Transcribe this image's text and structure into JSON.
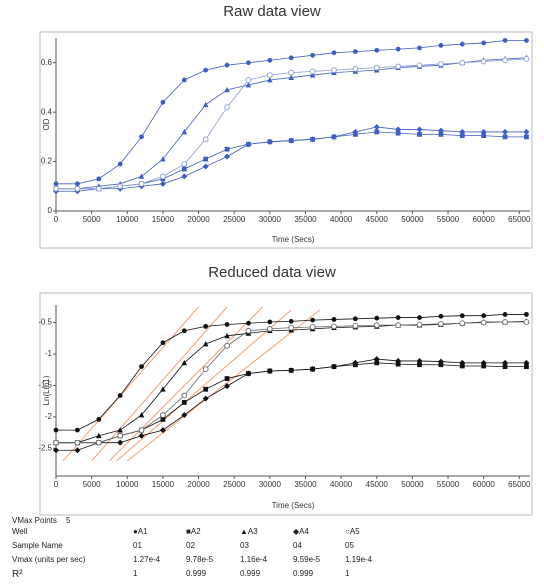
{
  "chart_data": [
    {
      "type": "line",
      "title": "Raw data view",
      "xlabel": "Time (Secs)",
      "ylabel": "OD",
      "x": [
        0,
        3000,
        6000,
        9000,
        12000,
        15000,
        18000,
        21000,
        24000,
        27000,
        30000,
        33000,
        36000,
        39000,
        42000,
        45000,
        48000,
        51000,
        54000,
        57000,
        60000,
        63000,
        66000
      ],
      "xlim": [
        0,
        66500
      ],
      "xticks": [
        0,
        5000,
        10000,
        15000,
        20000,
        25000,
        30000,
        35000,
        40000,
        45000,
        50000,
        55000,
        60000,
        65000
      ],
      "ylim": [
        0,
        0.7
      ],
      "yticks": [
        0,
        0.2,
        0.4,
        0.6
      ],
      "series": [
        {
          "marker": "circle",
          "color": "#3f5fbf",
          "values": [
            0.11,
            0.11,
            0.13,
            0.19,
            0.3,
            0.44,
            0.53,
            0.57,
            0.59,
            0.6,
            0.61,
            0.62,
            0.63,
            0.64,
            0.645,
            0.65,
            0.655,
            0.66,
            0.67,
            0.675,
            0.68,
            0.69,
            0.69
          ]
        },
        {
          "marker": "square",
          "color": "#3f5fbf",
          "values": [
            0.09,
            0.09,
            0.09,
            0.1,
            0.11,
            0.13,
            0.17,
            0.21,
            0.25,
            0.27,
            0.28,
            0.285,
            0.29,
            0.3,
            0.31,
            0.32,
            0.315,
            0.31,
            0.31,
            0.305,
            0.305,
            0.3,
            0.3
          ]
        },
        {
          "marker": "triangle",
          "color": "#3f5fbf",
          "values": [
            0.09,
            0.09,
            0.1,
            0.11,
            0.14,
            0.21,
            0.32,
            0.43,
            0.49,
            0.51,
            0.53,
            0.54,
            0.55,
            0.56,
            0.565,
            0.57,
            0.58,
            0.585,
            0.59,
            0.6,
            0.61,
            0.615,
            0.62
          ]
        },
        {
          "marker": "diamond",
          "color": "#3f5fbf",
          "values": [
            0.08,
            0.08,
            0.09,
            0.09,
            0.1,
            0.11,
            0.14,
            0.18,
            0.22,
            0.27,
            0.28,
            0.285,
            0.29,
            0.3,
            0.32,
            0.34,
            0.33,
            0.33,
            0.325,
            0.32,
            0.32,
            0.32,
            0.32
          ]
        },
        {
          "marker": "open-circle",
          "color": "#8a9ad0",
          "values": [
            0.09,
            0.09,
            0.09,
            0.1,
            0.11,
            0.14,
            0.19,
            0.29,
            0.42,
            0.53,
            0.55,
            0.56,
            0.565,
            0.57,
            0.575,
            0.58,
            0.585,
            0.59,
            0.595,
            0.6,
            0.605,
            0.61,
            0.615
          ]
        }
      ]
    },
    {
      "type": "line",
      "title": "Reduced data view",
      "xlabel": "Time (Secs)",
      "ylabel": "Ln(Lm1)",
      "x": [
        0,
        3000,
        6000,
        9000,
        12000,
        15000,
        18000,
        21000,
        24000,
        27000,
        30000,
        33000,
        36000,
        39000,
        42000,
        45000,
        48000,
        51000,
        54000,
        57000,
        60000,
        63000,
        66000
      ],
      "xlim": [
        0,
        66500
      ],
      "xticks": [
        0,
        5000,
        10000,
        15000,
        20000,
        25000,
        30000,
        35000,
        40000,
        45000,
        50000,
        55000,
        60000,
        65000
      ],
      "ylim": [
        -2.94,
        -0.22
      ],
      "yticks": [
        -0.5,
        -1,
        -1.5,
        -2,
        -2.5
      ],
      "series": [
        {
          "marker": "circle",
          "color": "#111111",
          "values": [
            -2.21,
            -2.21,
            -2.04,
            -1.66,
            -1.2,
            -0.82,
            -0.63,
            -0.56,
            -0.53,
            -0.51,
            -0.49,
            -0.48,
            -0.46,
            -0.45,
            -0.44,
            -0.43,
            -0.42,
            -0.42,
            -0.4,
            -0.39,
            -0.39,
            -0.37,
            -0.37
          ]
        },
        {
          "marker": "square",
          "color": "#111111",
          "values": [
            -2.41,
            -2.41,
            -2.41,
            -2.3,
            -2.21,
            -2.04,
            -1.77,
            -1.56,
            -1.39,
            -1.31,
            -1.27,
            -1.26,
            -1.24,
            -1.2,
            -1.17,
            -1.14,
            -1.16,
            -1.17,
            -1.17,
            -1.19,
            -1.19,
            -1.2,
            -1.2
          ]
        },
        {
          "marker": "triangle",
          "color": "#111111",
          "values": [
            -2.41,
            -2.41,
            -2.3,
            -2.21,
            -1.97,
            -1.56,
            -1.14,
            -0.84,
            -0.71,
            -0.67,
            -0.63,
            -0.62,
            -0.6,
            -0.58,
            -0.57,
            -0.56,
            -0.54,
            -0.54,
            -0.53,
            -0.51,
            -0.49,
            -0.49,
            -0.48
          ]
        },
        {
          "marker": "diamond",
          "color": "#111111",
          "values": [
            -2.53,
            -2.53,
            -2.41,
            -2.41,
            -2.3,
            -2.21,
            -1.97,
            -1.71,
            -1.51,
            -1.31,
            -1.27,
            -1.26,
            -1.24,
            -1.2,
            -1.14,
            -1.08,
            -1.11,
            -1.11,
            -1.12,
            -1.14,
            -1.14,
            -1.14,
            -1.14
          ]
        },
        {
          "marker": "open-circle",
          "color": "#666666",
          "values": [
            -2.41,
            -2.41,
            -2.41,
            -2.3,
            -2.21,
            -1.97,
            -1.66,
            -1.24,
            -0.87,
            -0.63,
            -0.6,
            -0.58,
            -0.57,
            -0.56,
            -0.55,
            -0.54,
            -0.54,
            -0.53,
            -0.52,
            -0.51,
            -0.5,
            -0.49,
            -0.49
          ]
        }
      ],
      "fit_color": "#f0a070",
      "fit_lines": [
        {
          "x": [
            1000,
            20000
          ],
          "values": [
            -2.7,
            -0.25
          ]
        },
        {
          "x": [
            5000,
            24000
          ],
          "values": [
            -2.7,
            -0.25
          ]
        },
        {
          "x": [
            7500,
            29000
          ],
          "values": [
            -2.7,
            -0.25
          ]
        },
        {
          "x": [
            8500,
            33000
          ],
          "values": [
            -2.7,
            -0.3
          ]
        },
        {
          "x": [
            10000,
            37000
          ],
          "values": [
            -2.7,
            -0.3
          ]
        }
      ]
    }
  ],
  "vmax_table": {
    "label": "VMax Points",
    "points": 5,
    "rows": [
      [
        "Well",
        "●A1",
        "■A2",
        "▲A3",
        "◆A4",
        "○A5"
      ],
      [
        "Sample Name",
        "01",
        "02",
        "03",
        "04",
        "05"
      ],
      [
        "Vmax (units per sec)",
        "1.27e-4",
        "9.78e-5",
        "1.16e-4",
        "9.59e-5",
        "1.19e-4"
      ],
      [
        "R²",
        "1",
        "0.999",
        "0.999",
        "0.999",
        "1"
      ]
    ]
  }
}
